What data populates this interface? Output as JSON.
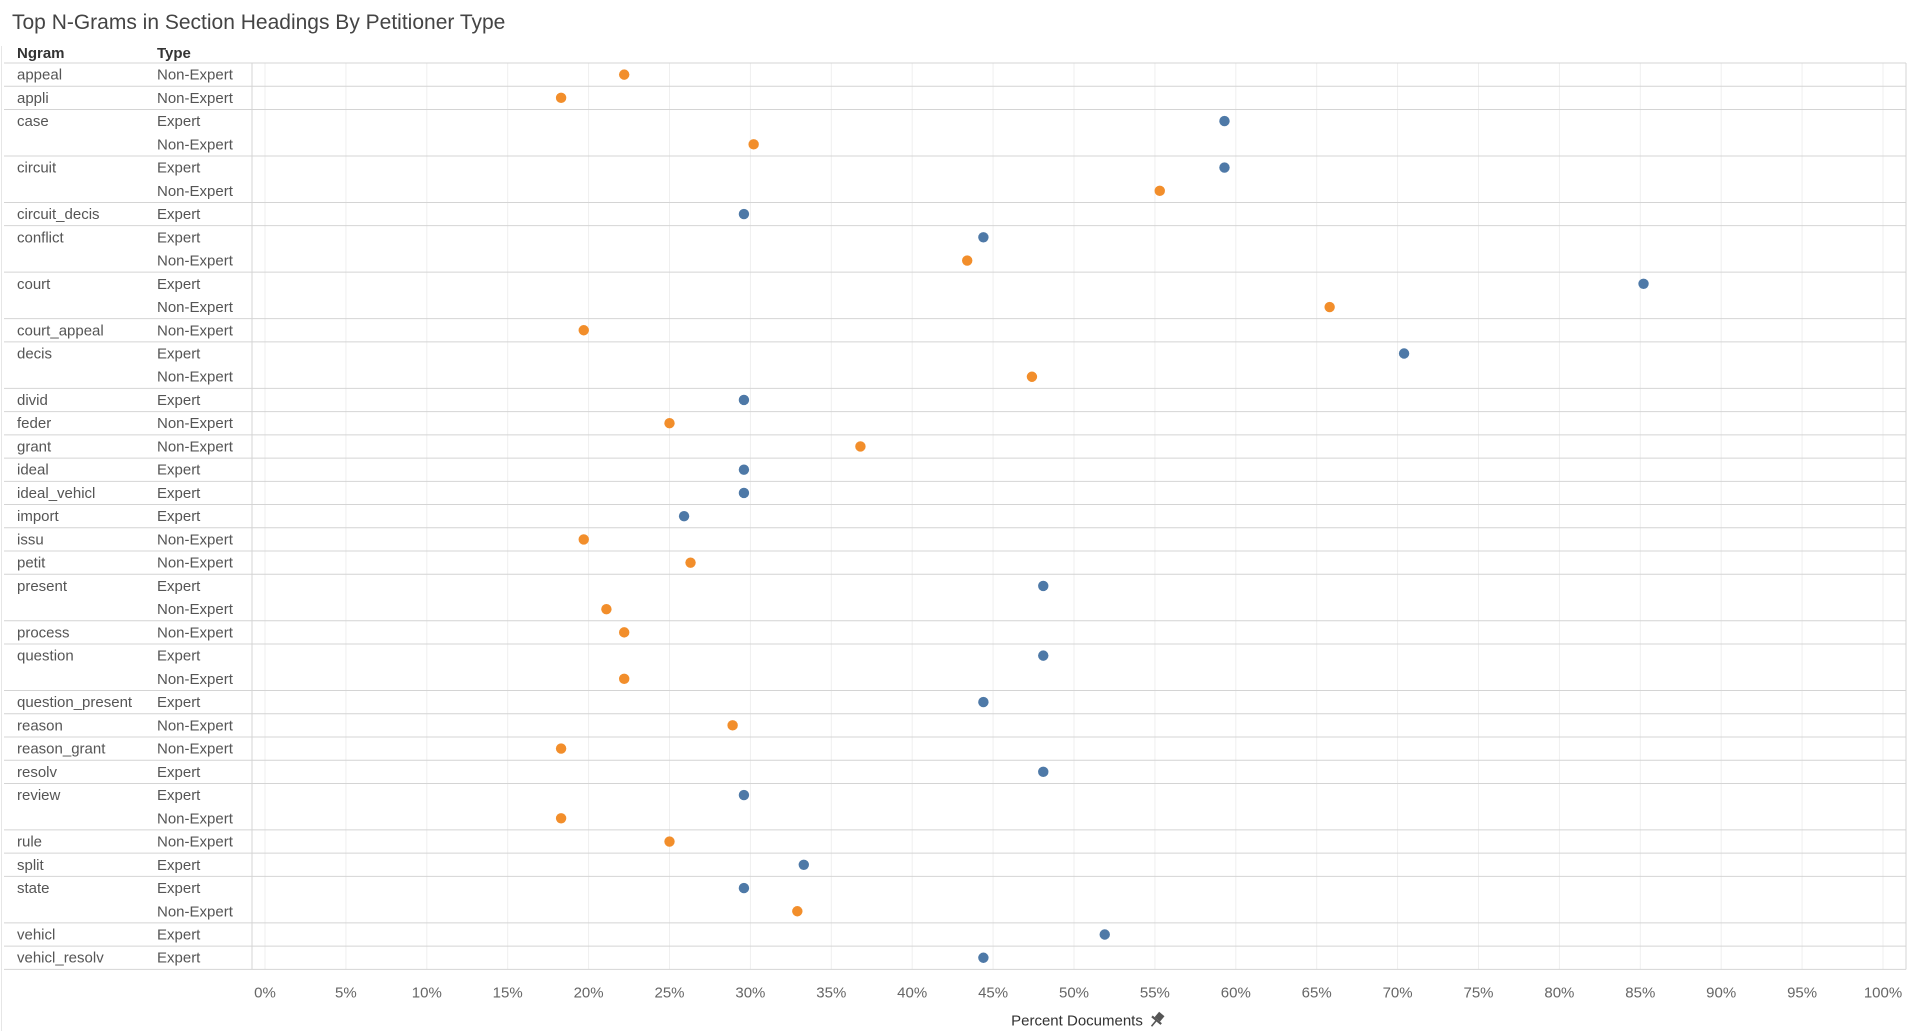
{
  "chart_data": {
    "type": "scatter",
    "title": "Top N-Grams in Section Headings By Petitioner Type",
    "row_headers": {
      "ngram": "Ngram",
      "type": "Type"
    },
    "xlabel": "Percent Documents",
    "xlabel_icon": "pin-icon",
    "xlim": [
      0,
      100
    ],
    "x_ticks": [
      "0%",
      "5%",
      "10%",
      "15%",
      "20%",
      "25%",
      "30%",
      "35%",
      "40%",
      "45%",
      "50%",
      "55%",
      "60%",
      "65%",
      "70%",
      "75%",
      "80%",
      "85%",
      "90%",
      "95%",
      "100%"
    ],
    "grid": true,
    "colors": {
      "Expert": "#4e79a7",
      "Non-Expert": "#f28e2b"
    },
    "groups": [
      {
        "ngram": "appeal",
        "rows": [
          {
            "type": "Non-Expert",
            "value": 22.2
          }
        ]
      },
      {
        "ngram": "appli",
        "rows": [
          {
            "type": "Non-Expert",
            "value": 18.3
          }
        ]
      },
      {
        "ngram": "case",
        "rows": [
          {
            "type": "Expert",
            "value": 59.3
          },
          {
            "type": "Non-Expert",
            "value": 30.2
          }
        ]
      },
      {
        "ngram": "circuit",
        "rows": [
          {
            "type": "Expert",
            "value": 59.3
          },
          {
            "type": "Non-Expert",
            "value": 55.3
          }
        ]
      },
      {
        "ngram": "circuit_decis",
        "rows": [
          {
            "type": "Expert",
            "value": 29.6
          }
        ]
      },
      {
        "ngram": "conflict",
        "rows": [
          {
            "type": "Expert",
            "value": 44.4
          },
          {
            "type": "Non-Expert",
            "value": 43.4
          }
        ]
      },
      {
        "ngram": "court",
        "rows": [
          {
            "type": "Expert",
            "value": 85.2
          },
          {
            "type": "Non-Expert",
            "value": 65.8
          }
        ]
      },
      {
        "ngram": "court_appeal",
        "rows": [
          {
            "type": "Non-Expert",
            "value": 19.7
          }
        ]
      },
      {
        "ngram": "decis",
        "rows": [
          {
            "type": "Expert",
            "value": 70.4
          },
          {
            "type": "Non-Expert",
            "value": 47.4
          }
        ]
      },
      {
        "ngram": "divid",
        "rows": [
          {
            "type": "Expert",
            "value": 29.6
          }
        ]
      },
      {
        "ngram": "feder",
        "rows": [
          {
            "type": "Non-Expert",
            "value": 25.0
          }
        ]
      },
      {
        "ngram": "grant",
        "rows": [
          {
            "type": "Non-Expert",
            "value": 36.8
          }
        ]
      },
      {
        "ngram": "ideal",
        "rows": [
          {
            "type": "Expert",
            "value": 29.6
          }
        ]
      },
      {
        "ngram": "ideal_vehicl",
        "rows": [
          {
            "type": "Expert",
            "value": 29.6
          }
        ]
      },
      {
        "ngram": "import",
        "rows": [
          {
            "type": "Expert",
            "value": 25.9
          }
        ]
      },
      {
        "ngram": "issu",
        "rows": [
          {
            "type": "Non-Expert",
            "value": 19.7
          }
        ]
      },
      {
        "ngram": "petit",
        "rows": [
          {
            "type": "Non-Expert",
            "value": 26.3
          }
        ]
      },
      {
        "ngram": "present",
        "rows": [
          {
            "type": "Expert",
            "value": 48.1
          },
          {
            "type": "Non-Expert",
            "value": 21.1
          }
        ]
      },
      {
        "ngram": "process",
        "rows": [
          {
            "type": "Non-Expert",
            "value": 22.2
          }
        ]
      },
      {
        "ngram": "question",
        "rows": [
          {
            "type": "Expert",
            "value": 48.1
          },
          {
            "type": "Non-Expert",
            "value": 22.2
          }
        ]
      },
      {
        "ngram": "question_present",
        "rows": [
          {
            "type": "Expert",
            "value": 44.4
          }
        ]
      },
      {
        "ngram": "reason",
        "rows": [
          {
            "type": "Non-Expert",
            "value": 28.9
          }
        ]
      },
      {
        "ngram": "reason_grant",
        "rows": [
          {
            "type": "Non-Expert",
            "value": 18.3
          }
        ]
      },
      {
        "ngram": "resolv",
        "rows": [
          {
            "type": "Expert",
            "value": 48.1
          }
        ]
      },
      {
        "ngram": "review",
        "rows": [
          {
            "type": "Expert",
            "value": 29.6
          },
          {
            "type": "Non-Expert",
            "value": 18.3
          }
        ]
      },
      {
        "ngram": "rule",
        "rows": [
          {
            "type": "Non-Expert",
            "value": 25.0
          }
        ]
      },
      {
        "ngram": "split",
        "rows": [
          {
            "type": "Expert",
            "value": 33.3
          }
        ]
      },
      {
        "ngram": "state",
        "rows": [
          {
            "type": "Expert",
            "value": 29.6
          },
          {
            "type": "Non-Expert",
            "value": 32.9
          }
        ]
      },
      {
        "ngram": "vehicl",
        "rows": [
          {
            "type": "Expert",
            "value": 51.9
          }
        ]
      },
      {
        "ngram": "vehicl_resolv",
        "rows": [
          {
            "type": "Expert",
            "value": 44.4
          }
        ]
      }
    ]
  }
}
